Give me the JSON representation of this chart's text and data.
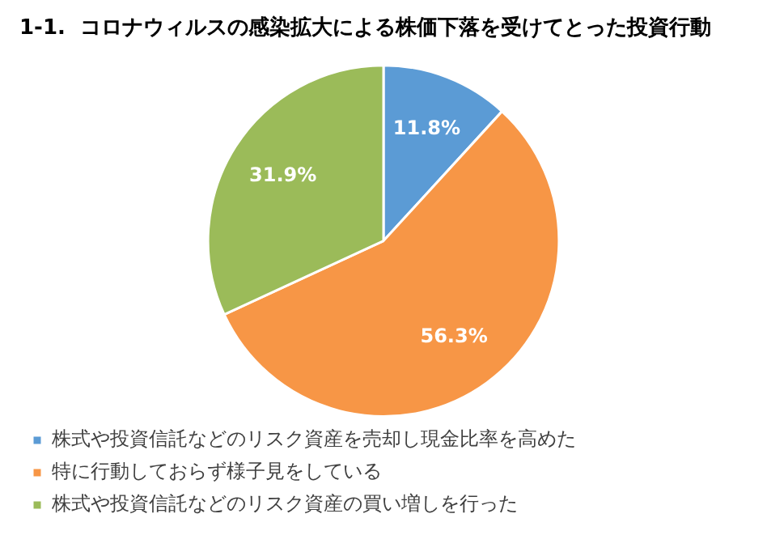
{
  "chart_data": {
    "type": "pie",
    "title": "1-1.  コロナウィルスの感染拡大による株価下落を受けてとった投資行動",
    "categories": [
      "株式や投資信託などのリスク資産を売却し現金比率を高めた",
      "特に行動しておらず様子見をしている",
      "株式や投資信託などのリスク資産の買い増しを行った"
    ],
    "values": [
      11.8,
      56.3,
      31.9
    ],
    "value_labels": [
      "11.8%",
      "56.3%",
      "31.9%"
    ],
    "colors": [
      "#5b9bd5",
      "#f79646",
      "#9bbb59"
    ],
    "legend": "bottom"
  }
}
